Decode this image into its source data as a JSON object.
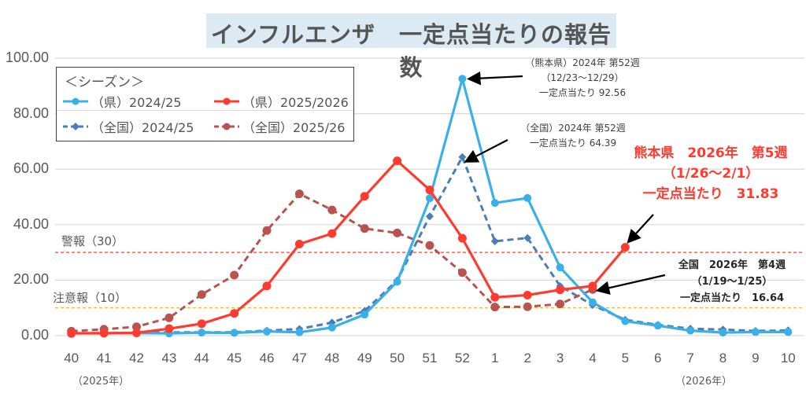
{
  "title": "インフルエンザ　一定点当たりの報告数",
  "legend": {
    "heading": "＜シーズン＞",
    "items": [
      {
        "label": "（県）2024/25",
        "color": "#3ab0e8",
        "style": "solid",
        "marker": "circle"
      },
      {
        "label": "（県）2025/2026",
        "color": "#ff3b2f",
        "style": "solid",
        "marker": "circle"
      },
      {
        "label": "（全国）2024/25",
        "color": "#4a7ebb",
        "style": "dashed",
        "marker": "diamond"
      },
      {
        "label": "（全国）2025/26",
        "color": "#b85450",
        "style": "dashed",
        "marker": "circle"
      }
    ]
  },
  "year_labels": {
    "start": "（2025年）",
    "end": "（2026年）"
  },
  "thresholds": [
    {
      "label": "警報（30）",
      "value": 30,
      "color": "#ff3b2f"
    },
    {
      "label": "注意報（10）",
      "value": 10,
      "color": "#ffc000"
    }
  ],
  "annotations": {
    "pref_peak": {
      "line1": "（熊本県）2024年 第52週",
      "line2": "（12/23〜12/29）",
      "line3": "一定点当たり 92.56"
    },
    "nat_peak": {
      "line1": "（全国）2024年 第52週",
      "line2": "一定点当たり 64.39"
    },
    "pref_latest": {
      "line1": "熊本県　2026年　第5週",
      "line2": "（1/26〜2/1）",
      "line3": "一定点当たり　31.83"
    },
    "nat_latest": {
      "line1": "全国　2026年　第4週",
      "line2": "（1/19〜1/25）",
      "line3": "一定点当たり　16.64"
    }
  },
  "chart_data": {
    "type": "line",
    "title": "インフルエンザ　一定点当たりの報告数",
    "xlabel": "",
    "ylabel": "",
    "ylim": [
      0,
      100
    ],
    "yticks": [
      "0.00",
      "20.00",
      "40.00",
      "60.00",
      "80.00",
      "100.00"
    ],
    "grid": true,
    "legend_position": "top-left",
    "categories": [
      "40",
      "41",
      "42",
      "43",
      "44",
      "45",
      "46",
      "47",
      "48",
      "49",
      "50",
      "51",
      "52",
      "1",
      "2",
      "3",
      "4",
      "5",
      "6",
      "7",
      "8",
      "9",
      "10"
    ],
    "series": [
      {
        "name": "（県）2024/25",
        "values": [
          0.9,
          0.8,
          0.9,
          0.8,
          1.1,
          1.0,
          1.5,
          1.2,
          2.9,
          7.6,
          19.4,
          49.5,
          92.56,
          47.8,
          49.6,
          24.6,
          12.0,
          5.2,
          3.6,
          1.8,
          1.1,
          1.3,
          1.3
        ]
      },
      {
        "name": "（県）2025/2026",
        "values": [
          0.8,
          0.9,
          1.0,
          2.5,
          4.3,
          8.0,
          17.9,
          33.0,
          36.8,
          50.2,
          63.0,
          52.5,
          35.1,
          13.8,
          14.6,
          16.5,
          17.9,
          31.83,
          null,
          null,
          null,
          null,
          null
        ]
      },
      {
        "name": "（全国）2024/25",
        "values": [
          0.9,
          0.9,
          1.0,
          1.2,
          1.2,
          1.2,
          1.8,
          2.4,
          4.7,
          8.9,
          19.9,
          43.0,
          64.39,
          34.0,
          35.2,
          17.9,
          11.0,
          5.7,
          3.9,
          2.5,
          2.2,
          1.7,
          1.9
        ]
      },
      {
        "name": "（全国）2025/26",
        "values": [
          1.6,
          2.3,
          3.2,
          6.4,
          14.8,
          21.8,
          37.9,
          51.1,
          45.3,
          38.6,
          37.0,
          32.5,
          22.7,
          10.3,
          10.4,
          11.4,
          16.64,
          null,
          null,
          null,
          null,
          null,
          null
        ]
      }
    ]
  }
}
